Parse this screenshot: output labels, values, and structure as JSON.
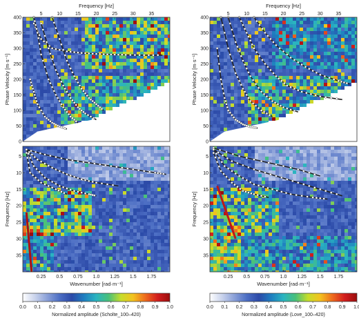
{
  "chart_data": [
    {
      "type": "heatmap",
      "panel": "top-left",
      "title": "",
      "xlabel": "Frequency [Hz]",
      "ylabel": "Phase Velocity [m·s⁻¹]",
      "xlim": [
        0,
        40
      ],
      "ylim": [
        0,
        400
      ],
      "xticks": [
        "5",
        "10",
        "15",
        "20",
        "25",
        "30",
        "35"
      ],
      "yticks": [
        "0",
        "50",
        "100",
        "150",
        "200",
        "250",
        "300",
        "350",
        "400"
      ],
      "description": "dispersion image with picked mode curves",
      "modes": [
        {
          "x": [
            3,
            5,
            8,
            12,
            16,
            20,
            24,
            28,
            33,
            38
          ],
          "y": [
            380,
            330,
            300,
            290,
            285,
            282,
            280,
            279,
            278,
            278
          ]
        },
        {
          "x": [
            3,
            4,
            5,
            7,
            9,
            11,
            13,
            15
          ],
          "y": [
            400,
            350,
            280,
            200,
            150,
            110,
            80,
            60
          ]
        },
        {
          "x": [
            5,
            7,
            9,
            11,
            13,
            15,
            17,
            20
          ],
          "y": [
            380,
            300,
            230,
            180,
            140,
            110,
            90,
            70
          ]
        },
        {
          "x": [
            8,
            10,
            12,
            14,
            16,
            18,
            20,
            22
          ],
          "y": [
            400,
            330,
            260,
            210,
            170,
            140,
            120,
            100
          ]
        },
        {
          "x": [
            2,
            3,
            4,
            6,
            8,
            10,
            12
          ],
          "y": [
            200,
            160,
            120,
            80,
            60,
            48,
            40
          ]
        }
      ]
    },
    {
      "type": "heatmap",
      "panel": "top-right",
      "title": "",
      "xlabel": "Frequency [Hz]",
      "ylabel": "Phase Velocity [m·s⁻¹]",
      "xlim": [
        0,
        40
      ],
      "ylim": [
        0,
        400
      ],
      "xticks": [
        "5",
        "10",
        "15",
        "20",
        "25",
        "30",
        "35"
      ],
      "yticks": [
        "0",
        "50",
        "100",
        "150",
        "200",
        "250",
        "300",
        "350",
        "400"
      ],
      "description": "dispersion image with picked mode curves",
      "modes": [
        {
          "x": [
            2,
            3,
            4,
            5,
            7,
            9,
            11,
            13
          ],
          "y": [
            300,
            200,
            140,
            100,
            70,
            55,
            47,
            43
          ]
        },
        {
          "x": [
            3,
            5,
            7,
            9,
            11,
            14,
            17
          ],
          "y": [
            400,
            300,
            220,
            170,
            130,
            100,
            80
          ]
        },
        {
          "x": [
            5,
            7,
            9,
            11,
            14,
            17,
            20,
            24
          ],
          "y": [
            400,
            320,
            260,
            210,
            160,
            130,
            110,
            95
          ]
        },
        {
          "x": [
            8,
            10,
            12,
            15,
            18,
            21,
            25,
            30,
            36
          ],
          "y": [
            400,
            350,
            300,
            250,
            210,
            180,
            160,
            145,
            135
          ]
        },
        {
          "x": [
            12,
            15,
            18,
            22,
            26,
            30,
            35,
            38
          ],
          "y": [
            400,
            350,
            310,
            270,
            240,
            215,
            195,
            185
          ]
        }
      ]
    },
    {
      "type": "heatmap",
      "panel": "bottom-left",
      "title": "",
      "xlabel": "Wavenumber [rad·m⁻¹]",
      "ylabel": "Frequency [Hz]",
      "xlim": [
        0,
        2.0
      ],
      "ylim": [
        40,
        2
      ],
      "xticks": [
        "0.25",
        "0.5",
        "0.75",
        "1.0",
        "1.25",
        "1.5",
        "1.75"
      ],
      "yticks": [
        "5",
        "10",
        "15",
        "20",
        "25",
        "30",
        "35"
      ],
      "description": "f-k spectrum with picked mode curves",
      "modes": [
        {
          "x": [
            0.05,
            0.3,
            0.6,
            0.9,
            1.2,
            1.5,
            1.8,
            1.95
          ],
          "y": [
            3,
            4.5,
            6,
            7,
            8,
            9,
            10,
            10.5
          ]
        },
        {
          "x": [
            0.05,
            0.2,
            0.4,
            0.6,
            0.8,
            1.0,
            1.3
          ],
          "y": [
            3,
            6,
            8.5,
            10.5,
            12,
            13,
            14
          ]
        },
        {
          "x": [
            0.05,
            0.15,
            0.3,
            0.5,
            0.7,
            0.9,
            1.0
          ],
          "y": [
            3,
            8,
            11.5,
            14,
            15.5,
            16.5,
            17
          ]
        },
        {
          "x": [
            0.05,
            0.1,
            0.25,
            0.45,
            0.6
          ],
          "y": [
            4,
            10,
            13,
            15,
            16.5
          ]
        }
      ]
    },
    {
      "type": "heatmap",
      "panel": "bottom-right",
      "title": "",
      "xlabel": "Wavenumber [rad·m⁻¹]",
      "ylabel": "Frequency [Hz]",
      "xlim": [
        0,
        2.0
      ],
      "ylim": [
        40,
        2
      ],
      "xticks": [
        "0.25",
        "0.5",
        "0.75",
        "1.0",
        "1.25",
        "1.5",
        "1.75"
      ],
      "yticks": [
        "5",
        "10",
        "15",
        "20",
        "25",
        "30",
        "35"
      ],
      "description": "f-k spectrum with picked mode curves",
      "modes": [
        {
          "x": [
            0.05,
            0.4,
            0.8,
            1.2,
            1.5
          ],
          "y": [
            2.5,
            5,
            7,
            9,
            11
          ]
        },
        {
          "x": [
            0.05,
            0.3,
            0.6,
            0.9,
            1.2,
            1.5,
            1.8
          ],
          "y": [
            3,
            6.5,
            9,
            11,
            13,
            15,
            17
          ]
        },
        {
          "x": [
            0.05,
            0.2,
            0.4,
            0.6,
            0.85,
            1.1,
            1.4,
            1.6
          ],
          "y": [
            3,
            8,
            11,
            13.5,
            15,
            16.5,
            17.5,
            18
          ]
        },
        {
          "x": [
            0.05,
            0.15,
            0.3,
            0.45,
            0.6,
            0.8
          ],
          "y": [
            4,
            9.5,
            13,
            15.5,
            16.5,
            17.5
          ]
        }
      ]
    }
  ],
  "colorbars": [
    {
      "label": "Normalized amplitude (Scholte_100–420)",
      "ticks": [
        "0.0",
        "0.1",
        "0.2",
        "0.3",
        "0.4",
        "0.5",
        "0.6",
        "0.7",
        "0.8",
        "0.9",
        "1.0"
      ]
    },
    {
      "label": "Normalized amplitude (Love_100–420)",
      "ticks": [
        "0.0",
        "0.1",
        "0.2",
        "0.3",
        "0.4",
        "0.5",
        "0.6",
        "0.7",
        "0.8",
        "0.9",
        "1.0"
      ]
    }
  ],
  "colormap": [
    "#ffffff",
    "#c9d3ec",
    "#8aa0d8",
    "#4d6fc4",
    "#2c4aa8",
    "#1f7fc0",
    "#2bb4c0",
    "#49c07a",
    "#c6dd2b",
    "#f3c21e",
    "#ee6b1d",
    "#d21d1d",
    "#9a0d0d"
  ]
}
